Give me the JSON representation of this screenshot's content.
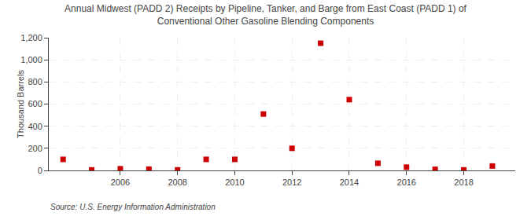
{
  "chart_data": {
    "type": "scatter",
    "title": "Annual Midwest (PADD 2) Receipts by Pipeline, Tanker, and Barge from East Coast (PADD 1) of\nConventional Other Gasoline Blending Components",
    "ylabel": "Thousand Barrels",
    "annotations": [
      "Source: U.S. Energy Information Administration"
    ],
    "x": [
      2004,
      2005,
      2006,
      2007,
      2008,
      2009,
      2010,
      2011,
      2012,
      2013,
      2014,
      2015,
      2016,
      2017,
      2018,
      2019
    ],
    "values": [
      100,
      5,
      15,
      12,
      5,
      100,
      100,
      510,
      200,
      1150,
      640,
      65,
      30,
      10,
      5,
      40
    ],
    "color": "#cc0000",
    "marker": "square",
    "xlim": [
      2003.5,
      2019.8
    ],
    "xticks": [
      2006,
      2008,
      2010,
      2012,
      2014,
      2016,
      2018
    ],
    "ylim": [
      0,
      1200
    ],
    "yticks": [
      0,
      200,
      400,
      600,
      800,
      {
        "value": 1000,
        "label": "1,000"
      },
      {
        "value": 1200,
        "label": "1,200"
      }
    ],
    "grid": true
  }
}
